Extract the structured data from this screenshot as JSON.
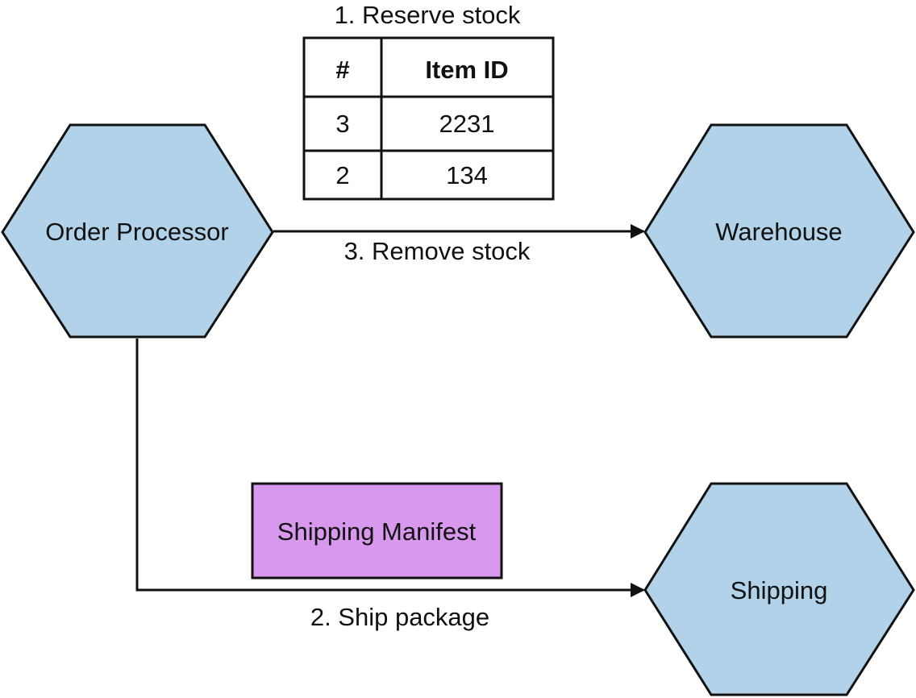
{
  "colors": {
    "service_fill": "#b1d2e8",
    "manifest_fill": "#d898ee",
    "stroke": "#111111",
    "text": "#111111"
  },
  "nodes": {
    "order_processor": "Order Processor",
    "warehouse": "Warehouse",
    "shipping": "Shipping",
    "shipping_manifest": "Shipping Manifest"
  },
  "edges": {
    "reserve_stock": "1. Reserve stock",
    "remove_stock": "3. Remove stock",
    "ship_package": "2. Ship package"
  },
  "reserve_table": {
    "headers": [
      "#",
      "Item ID"
    ],
    "rows": [
      [
        "3",
        "2231"
      ],
      [
        "2",
        "134"
      ]
    ]
  }
}
